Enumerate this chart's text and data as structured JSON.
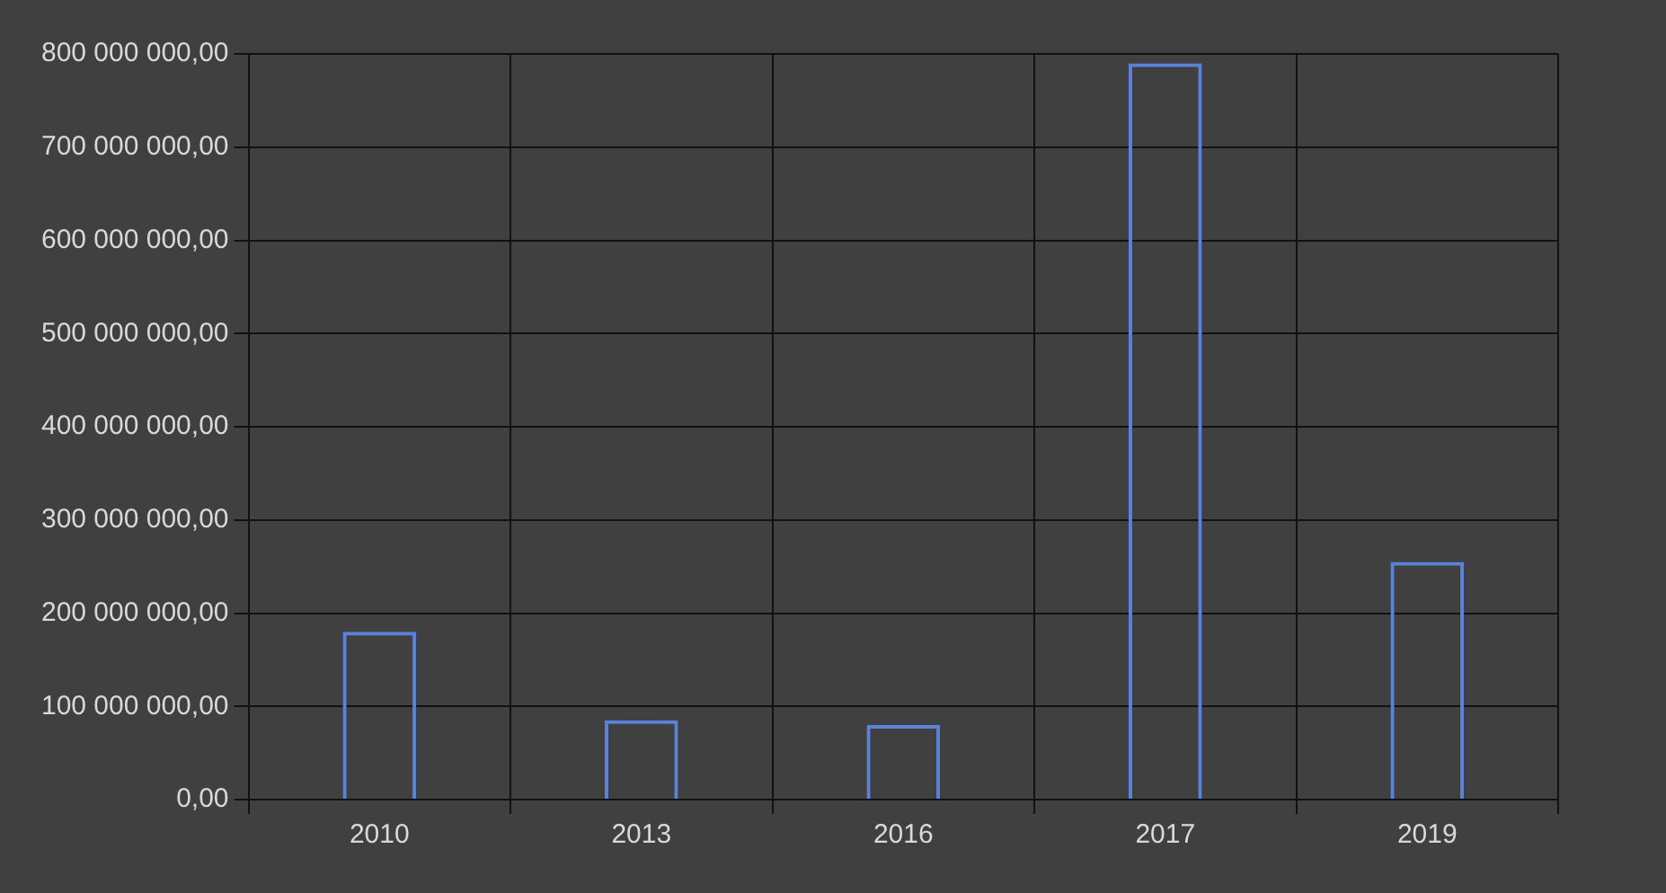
{
  "chart_data": {
    "type": "bar",
    "categories": [
      "2010",
      "2013",
      "2016",
      "2017",
      "2019"
    ],
    "values": [
      180000000,
      85000000,
      80000000,
      790000000,
      255000000
    ],
    "color": "#5b82d8",
    "ylim": [
      0,
      800000000
    ],
    "yticks": [
      {
        "value": 0,
        "label": "0,00"
      },
      {
        "value": 100000000,
        "label": "100 000 000,00"
      },
      {
        "value": 200000000,
        "label": "200 000 000,00"
      },
      {
        "value": 300000000,
        "label": "300 000 000,00"
      },
      {
        "value": 400000000,
        "label": "400 000 000,00"
      },
      {
        "value": 500000000,
        "label": "500 000 000,00"
      },
      {
        "value": 600000000,
        "label": "600 000 000,00"
      },
      {
        "value": 700000000,
        "label": "700 000 000,00"
      },
      {
        "value": 800000000,
        "label": "800 000 000,00"
      }
    ],
    "grid": true
  }
}
